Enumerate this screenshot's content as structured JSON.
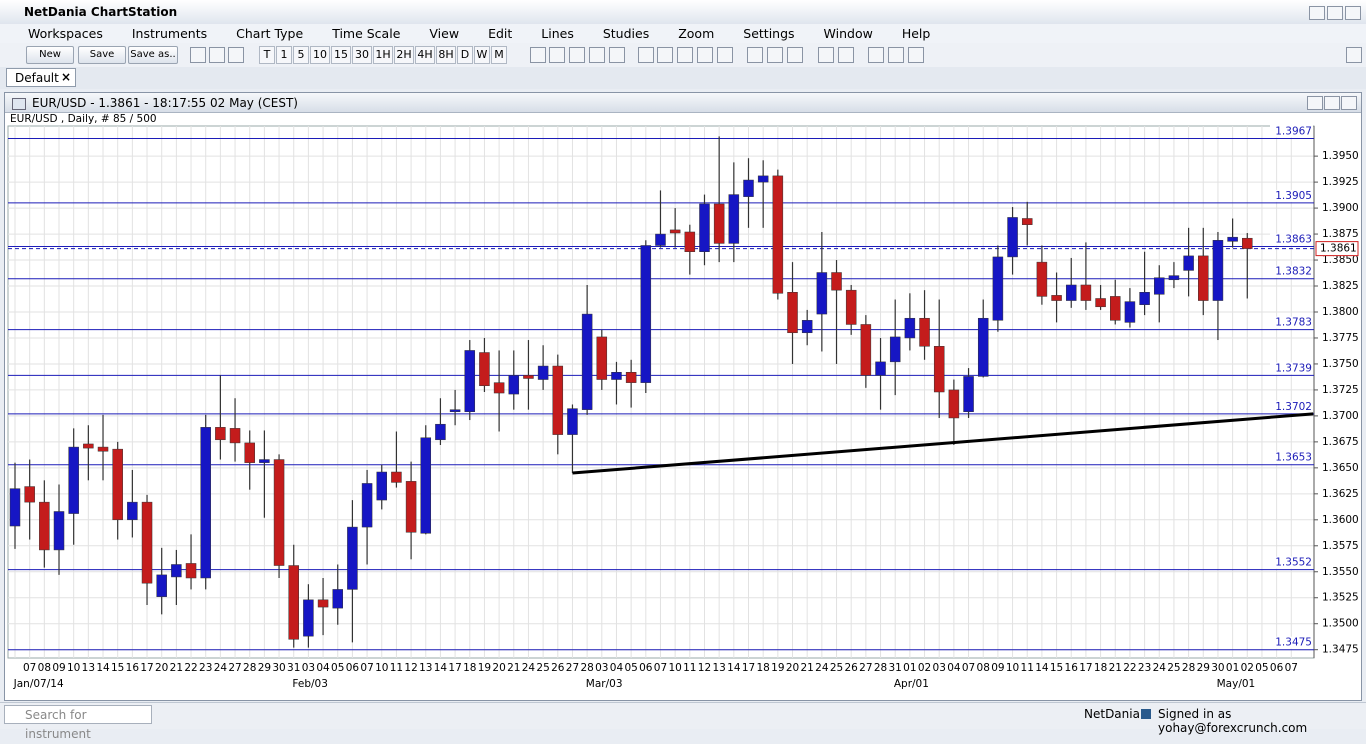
{
  "app": {
    "title": "NetDania ChartStation"
  },
  "menu": [
    "Workspaces",
    "Instruments",
    "Chart Type",
    "Time Scale",
    "View",
    "Edit",
    "Lines",
    "Studies",
    "Zoom",
    "Settings",
    "Window",
    "Help"
  ],
  "toolbar": {
    "buttons": [
      "New",
      "Save",
      "Save as.."
    ],
    "periods": [
      "T",
      "1",
      "5",
      "10",
      "15",
      "30",
      "1H",
      "2H",
      "4H",
      "8H",
      "D",
      "W",
      "M"
    ]
  },
  "tabs": [
    "Default"
  ],
  "window": {
    "title": "EUR/USD - 1.3861 - 18:17:55  02 May (CEST)"
  },
  "status": {
    "search_placeholder": "Search for instrument",
    "brand": "NetDania",
    "user": "Signed in as yohay@forexcrunch.com"
  },
  "chart_data": {
    "type": "candlestick",
    "subtitle": "EUR/USD , Daily, # 85 / 500",
    "categories": [
      null,
      "07",
      "08",
      "09",
      "10",
      "13",
      "14",
      "15",
      "16",
      "17",
      "20",
      "21",
      "22",
      "23",
      "24",
      "27",
      "28",
      "29",
      "30",
      "31",
      "03",
      "04",
      "05",
      "06",
      "07",
      "10",
      "11",
      "12",
      "13",
      "14",
      "17",
      "18",
      "19",
      "20",
      "21",
      "24",
      "25",
      "26",
      "27",
      "28",
      "03",
      "04",
      "05",
      "06",
      "07",
      "10",
      "11",
      "12",
      "13",
      "14",
      "17",
      "18",
      "19",
      "20",
      "21",
      "24",
      "25",
      "26",
      "27",
      "28",
      "31",
      "01",
      "02",
      "03",
      "04",
      "07",
      "08",
      "09",
      "10",
      "11",
      "14",
      "15",
      "16",
      "17",
      "18",
      "21",
      "22",
      "23",
      "24",
      "25",
      "28",
      "29",
      "30",
      "01",
      "02",
      "05",
      "06",
      "07"
    ],
    "period_labels": [
      "Jan/07/14",
      "Feb/03",
      "Mar/03",
      "Apr/01",
      "May/01"
    ],
    "open": [
      1.3594,
      1.3632,
      1.3617,
      1.3571,
      1.3606,
      1.3673,
      1.367,
      1.3668,
      1.36,
      1.3617,
      1.3526,
      1.3545,
      1.3558,
      1.3544,
      1.3689,
      1.3688,
      1.3674,
      1.3655,
      1.3658,
      1.3556,
      1.3488,
      1.3523,
      1.3515,
      1.3533,
      1.3593,
      1.3619,
      1.3646,
      1.3637,
      1.3587,
      1.3677,
      1.3704,
      1.3704,
      1.3761,
      1.3732,
      1.3721,
      1.3739,
      1.3735,
      1.3748,
      1.3682,
      1.3706,
      1.3776,
      1.3735,
      1.3742,
      1.3732,
      1.3864,
      1.3879,
      1.3877,
      1.3858,
      1.3904,
      1.3866,
      1.3911,
      1.3925,
      1.3931,
      1.3819,
      1.378,
      1.3798,
      1.3838,
      1.3821,
      1.3788,
      1.3739,
      1.3752,
      1.3775,
      1.3794,
      1.3767,
      1.3725,
      1.3704,
      1.3738,
      1.3792,
      1.3853,
      1.389,
      1.3848,
      1.3816,
      1.3811,
      1.3826,
      1.3813,
      1.3815,
      1.379,
      1.3807,
      1.3817,
      1.3831,
      1.384,
      1.3854,
      1.3811,
      1.3868,
      1.3871,
      null,
      null,
      null
    ],
    "high": [
      1.3655,
      1.3658,
      1.3638,
      1.3634,
      1.3688,
      1.3691,
      1.3701,
      1.3675,
      1.3648,
      1.3624,
      1.3573,
      1.3571,
      1.3586,
      1.3701,
      1.3739,
      1.3717,
      1.3686,
      1.3686,
      1.3663,
      1.3576,
      1.3538,
      1.3544,
      1.3557,
      1.3619,
      1.3648,
      1.3653,
      1.3685,
      1.3656,
      1.3691,
      1.3717,
      1.3725,
      1.3773,
      1.3775,
      1.3763,
      1.3763,
      1.3773,
      1.3768,
      1.3759,
      1.3711,
      1.3826,
      1.3783,
      1.3752,
      1.3754,
      1.3869,
      1.3917,
      1.39,
      1.3884,
      1.3913,
      1.3969,
      1.3944,
      1.3948,
      1.3946,
      1.3937,
      1.3848,
      1.3802,
      1.3877,
      1.385,
      1.3826,
      1.3797,
      1.3775,
      1.3812,
      1.3818,
      1.3821,
      1.3812,
      1.3735,
      1.3746,
      1.3812,
      1.3864,
      1.3901,
      1.3906,
      1.3864,
      1.3838,
      1.3852,
      1.3867,
      1.3826,
      1.3831,
      1.3823,
      1.3858,
      1.3845,
      1.3848,
      1.3881,
      1.3881,
      1.3877,
      1.389,
      1.3876,
      null,
      null,
      null
    ],
    "low": [
      1.3572,
      1.3581,
      1.3554,
      1.3547,
      1.3576,
      1.3638,
      1.3638,
      1.3581,
      1.3583,
      1.3518,
      1.3509,
      1.3518,
      1.3533,
      1.3533,
      1.3658,
      1.3656,
      1.3629,
      1.3602,
      1.3544,
      1.3477,
      1.3477,
      1.3489,
      1.3499,
      1.3482,
      1.3557,
      1.361,
      1.3631,
      1.3562,
      1.3586,
      1.3672,
      1.3691,
      1.3696,
      1.3723,
      1.3685,
      1.3706,
      1.3706,
      1.3725,
      1.3663,
      1.3645,
      1.3701,
      1.3725,
      1.3711,
      1.3708,
      1.3722,
      1.3862,
      1.3862,
      1.3836,
      1.3845,
      1.3848,
      1.3848,
      1.3881,
      1.3881,
      1.3812,
      1.375,
      1.3768,
      1.3762,
      1.375,
      1.3778,
      1.3727,
      1.3706,
      1.372,
      1.3763,
      1.3754,
      1.3698,
      1.3672,
      1.3698,
      1.3737,
      1.3781,
      1.3836,
      1.3864,
      1.3807,
      1.379,
      1.3804,
      1.3802,
      1.3802,
      1.3788,
      1.3785,
      1.3797,
      1.379,
      1.3823,
      1.3815,
      1.3797,
      1.3773,
      1.3862,
      1.3813,
      null,
      null,
      null
    ],
    "close": [
      1.363,
      1.3617,
      1.3571,
      1.3608,
      1.367,
      1.3669,
      1.3666,
      1.36,
      1.3617,
      1.3539,
      1.3547,
      1.3557,
      1.3544,
      1.3689,
      1.3677,
      1.3674,
      1.3655,
      1.3658,
      1.3556,
      1.3485,
      1.3523,
      1.3516,
      1.3533,
      1.3593,
      1.3635,
      1.3646,
      1.3636,
      1.3588,
      1.3679,
      1.3692,
      1.3706,
      1.3763,
      1.3729,
      1.3722,
      1.3739,
      1.3736,
      1.3748,
      1.3682,
      1.3707,
      1.3798,
      1.3735,
      1.3742,
      1.3732,
      1.3864,
      1.3875,
      1.3876,
      1.3858,
      1.3904,
      1.3866,
      1.3913,
      1.3927,
      1.3931,
      1.3818,
      1.378,
      1.3792,
      1.3838,
      1.3821,
      1.3788,
      1.3739,
      1.3752,
      1.3776,
      1.3794,
      1.3767,
      1.3723,
      1.3698,
      1.3738,
      1.3794,
      1.3853,
      1.3891,
      1.3884,
      1.3815,
      1.3811,
      1.3826,
      1.3811,
      1.3805,
      1.3792,
      1.381,
      1.3819,
      1.3833,
      1.3835,
      1.3854,
      1.3811,
      1.3869,
      1.3872,
      1.3861,
      null,
      null,
      null
    ],
    "up_color": "#1616c4",
    "down_color": "#c41c1c",
    "levels": [
      1.3967,
      1.3905,
      1.3863,
      1.3832,
      1.3783,
      1.3739,
      1.3702,
      1.3653,
      1.3552,
      1.3475
    ],
    "level_color": "#1c1cb8",
    "last_price": 1.3861,
    "trendline": {
      "x": [
        38,
        88.5
      ],
      "values": [
        1.3645,
        1.3702
      ]
    },
    "ylim": [
      1.3467,
      1.3979
    ],
    "yticks": [
      1.3475,
      {
        "value": 1.35,
        "label": "1.3500"
      },
      1.3525,
      {
        "value": 1.355,
        "label": "1.3550"
      },
      1.3575,
      {
        "value": 1.36,
        "label": "1.3600"
      },
      1.3625,
      {
        "value": 1.365,
        "label": "1.3650"
      },
      1.3675,
      {
        "value": 1.37,
        "label": "1.3700"
      },
      1.3725,
      {
        "value": 1.375,
        "label": "1.3750"
      },
      1.3775,
      {
        "value": 1.38,
        "label": "1.3800"
      },
      1.3825,
      {
        "value": 1.385,
        "label": "1.3850"
      },
      1.3875,
      {
        "value": 1.39,
        "label": "1.3900"
      },
      1.3925,
      {
        "value": 1.395,
        "label": "1.3950"
      }
    ],
    "grid": true
  }
}
